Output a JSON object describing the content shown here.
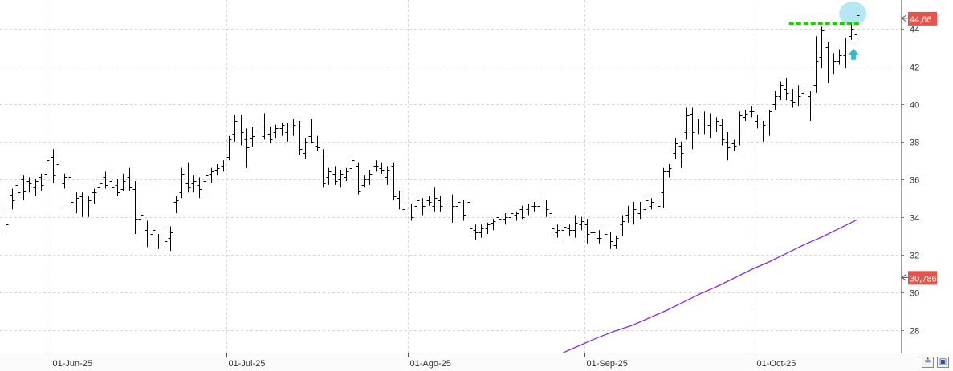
{
  "chart_data": {
    "type": "bar",
    "subtype": "ohlc",
    "x_axis_labels": [
      "01-Jun-25",
      "01-Jul-25",
      "01-Ago-25",
      "01-Sep-25",
      "01-Oct-25"
    ],
    "y_ticks": [
      28,
      30,
      32,
      34,
      36,
      38,
      40,
      42,
      44
    ],
    "ylim": [
      26.8,
      45.3
    ],
    "grid": true,
    "price_label": "44,66",
    "ma_label": "30,786",
    "resistance_level": 44.3,
    "ohlc": [
      [
        34.5,
        34.7,
        33.0,
        33.6
      ],
      [
        35.2,
        35.5,
        34.4,
        34.9
      ],
      [
        35.7,
        35.9,
        34.7,
        35.3
      ],
      [
        36.0,
        36.2,
        34.9,
        35.4
      ],
      [
        35.9,
        36.1,
        35.3,
        35.8
      ],
      [
        35.6,
        36.0,
        35.1,
        35.9
      ],
      [
        36.1,
        36.3,
        35.4,
        35.7
      ],
      [
        36.3,
        37.2,
        35.6,
        37.0
      ],
      [
        37.2,
        37.6,
        35.8,
        36.2
      ],
      [
        36.8,
        37.0,
        34.0,
        34.5
      ],
      [
        35.8,
        36.3,
        35.5,
        36.1
      ],
      [
        36.1,
        36.5,
        34.4,
        34.8
      ],
      [
        34.7,
        35.3,
        34.2,
        35.0
      ],
      [
        35.1,
        35.3,
        34.0,
        34.3
      ],
      [
        34.3,
        35.1,
        34.0,
        34.9
      ],
      [
        35.3,
        35.5,
        34.7,
        35.3
      ],
      [
        35.6,
        36.1,
        35.3,
        35.8
      ],
      [
        36.1,
        36.4,
        35.5,
        35.7
      ],
      [
        35.9,
        36.5,
        35.3,
        35.6
      ],
      [
        35.7,
        36.0,
        35.1,
        35.3
      ],
      [
        35.5,
        36.3,
        35.4,
        35.9
      ],
      [
        36.1,
        36.6,
        35.4,
        35.6
      ],
      [
        35.5,
        35.9,
        33.1,
        33.9
      ],
      [
        33.9,
        34.3,
        33.7,
        34.1
      ],
      [
        33.3,
        33.8,
        32.4,
        32.8
      ],
      [
        33.1,
        33.5,
        32.5,
        33.3
      ],
      [
        32.8,
        33.1,
        32.3,
        32.6
      ],
      [
        33.0,
        33.4,
        32.1,
        32.7
      ],
      [
        32.9,
        33.5,
        32.2,
        33.2
      ],
      [
        34.8,
        35.1,
        34.2,
        34.9
      ],
      [
        35.3,
        36.6,
        35.0,
        36.3
      ],
      [
        35.8,
        36.9,
        35.3,
        35.6
      ],
      [
        35.8,
        36.2,
        35.3,
        35.9
      ],
      [
        35.7,
        36.1,
        35.0,
        35.5
      ],
      [
        35.9,
        36.4,
        35.3,
        36.2
      ],
      [
        36.3,
        36.6,
        35.8,
        36.4
      ],
      [
        36.5,
        36.8,
        36.2,
        36.6
      ],
      [
        36.7,
        37.0,
        36.4,
        36.9
      ],
      [
        37.2,
        38.3,
        37.0,
        38.1
      ],
      [
        38.4,
        39.4,
        38.0,
        39.1
      ],
      [
        38.6,
        39.4,
        37.8,
        38.5
      ],
      [
        38.1,
        38.7,
        36.6,
        37.7
      ],
      [
        38.2,
        38.8,
        37.7,
        38.3
      ],
      [
        38.6,
        39.2,
        37.9,
        38.8
      ],
      [
        38.3,
        39.5,
        38.1,
        39.0
      ],
      [
        38.4,
        38.8,
        37.9,
        38.1
      ],
      [
        38.5,
        38.9,
        38.2,
        38.7
      ],
      [
        38.7,
        39.0,
        38.3,
        38.9
      ],
      [
        38.5,
        39.0,
        38.0,
        38.8
      ],
      [
        38.6,
        39.2,
        38.3,
        38.9
      ],
      [
        39.0,
        39.1,
        37.3,
        37.6
      ],
      [
        37.4,
        38.2,
        37.1,
        38.0
      ],
      [
        38.3,
        39.2,
        37.9,
        38.0
      ],
      [
        37.8,
        38.3,
        37.5,
        37.7
      ],
      [
        37.1,
        37.6,
        35.6,
        35.8
      ],
      [
        36.1,
        36.6,
        35.7,
        36.4
      ],
      [
        36.3,
        36.7,
        35.7,
        35.9
      ],
      [
        36.0,
        36.5,
        35.6,
        36.3
      ],
      [
        36.1,
        36.6,
        35.9,
        36.4
      ],
      [
        36.6,
        37.1,
        36.3,
        37.0
      ],
      [
        36.7,
        36.9,
        35.2,
        35.4
      ],
      [
        35.7,
        36.2,
        35.6,
        36.0
      ],
      [
        36.0,
        36.5,
        35.7,
        36.3
      ],
      [
        36.7,
        37.0,
        36.4,
        36.7
      ],
      [
        36.6,
        36.9,
        36.3,
        36.5
      ],
      [
        36.1,
        36.7,
        35.7,
        36.5
      ],
      [
        36.7,
        36.9,
        34.9,
        35.1
      ],
      [
        35.0,
        35.4,
        34.4,
        34.7
      ],
      [
        34.4,
        34.8,
        34.0,
        34.5
      ],
      [
        34.3,
        34.7,
        33.8,
        34.0
      ],
      [
        34.6,
        35.1,
        34.3,
        34.9
      ],
      [
        34.7,
        35.0,
        34.1,
        34.6
      ],
      [
        34.9,
        35.1,
        34.6,
        34.8
      ],
      [
        34.6,
        35.6,
        34.3,
        35.0
      ],
      [
        34.9,
        35.1,
        34.3,
        34.6
      ],
      [
        34.5,
        34.8,
        34.0,
        34.3
      ],
      [
        34.7,
        35.2,
        33.7,
        34.6
      ],
      [
        34.6,
        34.9,
        34.2,
        34.8
      ],
      [
        34.7,
        34.9,
        33.8,
        34.1
      ],
      [
        34.8,
        34.9,
        33.0,
        33.4
      ],
      [
        33.3,
        33.6,
        32.8,
        33.2
      ],
      [
        33.2,
        33.6,
        32.9,
        33.4
      ],
      [
        33.4,
        33.7,
        33.1,
        33.6
      ],
      [
        33.7,
        33.9,
        33.3,
        33.8
      ],
      [
        34.0,
        34.1,
        33.7,
        33.9
      ],
      [
        33.9,
        34.2,
        33.6,
        34.0
      ],
      [
        34.0,
        34.3,
        33.7,
        34.2
      ],
      [
        34.1,
        34.3,
        33.8,
        34.2
      ],
      [
        34.4,
        34.6,
        33.9,
        34.0
      ],
      [
        34.4,
        34.7,
        34.1,
        34.5
      ],
      [
        34.6,
        34.8,
        34.3,
        34.6
      ],
      [
        34.6,
        35.0,
        34.3,
        34.7
      ],
      [
        34.5,
        34.9,
        34.0,
        34.4
      ],
      [
        34.2,
        34.4,
        33.0,
        33.4
      ],
      [
        33.2,
        33.6,
        32.9,
        33.3
      ],
      [
        33.3,
        33.6,
        32.9,
        33.5
      ],
      [
        33.4,
        33.6,
        33.0,
        33.3
      ],
      [
        33.3,
        34.1,
        32.9,
        33.7
      ],
      [
        33.6,
        34.0,
        33.3,
        33.8
      ],
      [
        33.6,
        33.9,
        32.6,
        33.1
      ],
      [
        33.2,
        33.5,
        32.8,
        33.2
      ],
      [
        32.9,
        33.3,
        32.6,
        32.9
      ],
      [
        33.0,
        33.6,
        32.7,
        33.1
      ],
      [
        32.8,
        33.2,
        32.3,
        32.7
      ],
      [
        32.5,
        33.0,
        32.3,
        32.9
      ],
      [
        33.6,
        34.1,
        33.0,
        33.8
      ],
      [
        34.1,
        34.6,
        33.7,
        34.3
      ],
      [
        34.3,
        34.8,
        33.6,
        34.4
      ],
      [
        34.2,
        34.8,
        33.9,
        34.5
      ],
      [
        34.4,
        35.1,
        34.3,
        34.9
      ],
      [
        34.6,
        35.0,
        34.4,
        34.8
      ],
      [
        34.7,
        35.0,
        34.4,
        34.6
      ],
      [
        35.3,
        36.6,
        34.5,
        36.4
      ],
      [
        36.4,
        36.8,
        36.1,
        36.6
      ],
      [
        37.4,
        38.2,
        37.1,
        37.9
      ],
      [
        37.8,
        38.0,
        36.6,
        37.4
      ],
      [
        38.5,
        39.8,
        38.1,
        39.4
      ],
      [
        39.5,
        39.8,
        37.6,
        38.5
      ],
      [
        38.8,
        39.2,
        38.4,
        39.0
      ],
      [
        39.0,
        39.6,
        38.4,
        38.8
      ],
      [
        38.9,
        39.5,
        38.2,
        38.8
      ],
      [
        38.8,
        39.3,
        38.5,
        39.1
      ],
      [
        38.9,
        39.2,
        37.8,
        38.1
      ],
      [
        38.0,
        38.5,
        37.0,
        37.7
      ],
      [
        37.9,
        38.1,
        37.5,
        37.8
      ],
      [
        38.6,
        39.6,
        37.8,
        39.4
      ],
      [
        39.3,
        39.7,
        39.1,
        39.5
      ],
      [
        39.6,
        39.9,
        39.3,
        39.6
      ],
      [
        39.1,
        39.4,
        38.7,
        39.0
      ],
      [
        38.6,
        39.1,
        38.0,
        38.9
      ],
      [
        39.0,
        39.7,
        38.3,
        39.6
      ],
      [
        40.0,
        40.7,
        39.7,
        40.4
      ],
      [
        40.4,
        41.2,
        40.2,
        41.0
      ],
      [
        40.8,
        41.4,
        40.2,
        40.6
      ],
      [
        40.2,
        40.8,
        39.8,
        40.1
      ],
      [
        40.7,
        41.0,
        39.9,
        40.4
      ],
      [
        40.6,
        40.9,
        40.0,
        40.3
      ],
      [
        40.4,
        40.7,
        39.1,
        40.5
      ],
      [
        41.0,
        43.6,
        40.6,
        42.3
      ],
      [
        42.5,
        44.1,
        41.9,
        43.9
      ],
      [
        43.0,
        43.3,
        41.1,
        42.0
      ],
      [
        42.2,
        42.7,
        41.6,
        42.3
      ],
      [
        42.3,
        42.9,
        42.1,
        42.6
      ],
      [
        42.6,
        43.5,
        41.9,
        43.3
      ],
      [
        43.6,
        44.3,
        43.4,
        44.0
      ],
      [
        43.7,
        45.0,
        43.4,
        44.7
      ]
    ],
    "sma": [
      [
        27.0,
        26.8
      ],
      [
        28.0,
        27.2
      ],
      [
        29.0,
        27.6
      ],
      [
        30.0,
        27.95
      ],
      [
        31.0,
        28.25
      ],
      [
        32.0,
        28.65
      ],
      [
        33.0,
        29.05
      ],
      [
        34.0,
        29.5
      ],
      [
        35.0,
        29.95
      ],
      [
        36.0,
        30.35
      ],
      [
        37.0,
        30.8
      ],
      [
        38.0,
        31.25
      ],
      [
        39.0,
        31.65
      ],
      [
        40.0,
        32.1
      ],
      [
        41.0,
        32.55
      ],
      [
        42.0,
        32.95
      ],
      [
        43.0,
        33.4
      ],
      [
        44.0,
        33.85
      ]
    ],
    "colors": {
      "bars": "#000000",
      "sma": "#8a2be2",
      "resistance": "#22cc00",
      "price_badge": "#e5534b",
      "highlight": "#aee6f2",
      "arrow": "#39b9c0",
      "grid": "#d6d6d6"
    }
  }
}
